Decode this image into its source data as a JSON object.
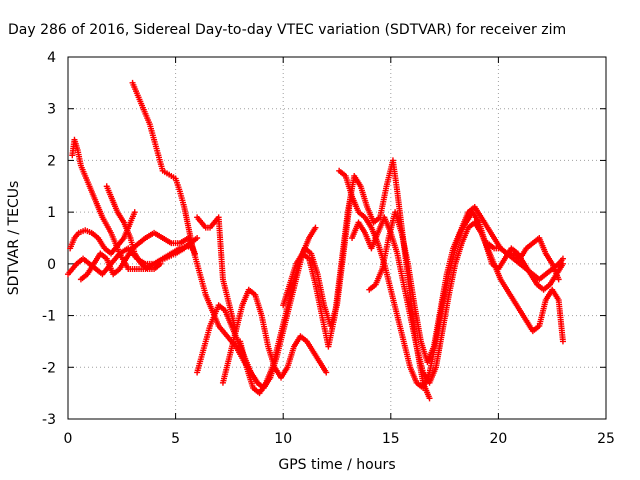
{
  "chart_data": {
    "type": "scatter",
    "title": "Day 286 of 2016, Sidereal Day-to-day VTEC variation (SDTVAR) for receiver zim",
    "xlabel": "GPS time / hours",
    "ylabel": "SDTVAR / TECUs",
    "xlim": [
      0,
      25
    ],
    "ylim": [
      -3,
      4
    ],
    "xticks": [
      "0",
      "5",
      "10",
      "15",
      "20",
      "25"
    ],
    "yticks": [
      "-3",
      "-2",
      "-1",
      "0",
      "1",
      "2",
      "3",
      "4"
    ],
    "grid": true,
    "marker": "plus",
    "color": "#ff0000",
    "series": [
      {
        "x": [
          0.0,
          0.2,
          0.4,
          0.7,
          1.0,
          1.3,
          1.6,
          2.0,
          2.4,
          2.8,
          3.2,
          3.6,
          4.0,
          4.4,
          4.8,
          5.2,
          5.5,
          5.8
        ],
        "y": [
          -0.2,
          -0.1,
          0.0,
          0.1,
          0.0,
          -0.1,
          -0.2,
          0.0,
          0.2,
          0.3,
          0.1,
          0.0,
          0.0,
          0.1,
          0.2,
          0.3,
          0.35,
          0.3
        ]
      },
      {
        "x": [
          0.1,
          0.3,
          0.5,
          0.8,
          1.1,
          1.4,
          1.7,
          2.0,
          2.3,
          2.6,
          2.9,
          3.1
        ],
        "y": [
          0.3,
          0.5,
          0.6,
          0.65,
          0.6,
          0.5,
          0.3,
          0.2,
          0.35,
          0.5,
          0.8,
          1.0
        ]
      },
      {
        "x": [
          0.2,
          0.3,
          0.45,
          0.6,
          0.8,
          1.0,
          1.3,
          1.6,
          2.0,
          2.4,
          2.8,
          3.2,
          3.6,
          4.0,
          4.5,
          5.0,
          5.4,
          5.7,
          6.0
        ],
        "y": [
          2.1,
          2.4,
          2.2,
          1.9,
          1.7,
          1.5,
          1.2,
          0.9,
          0.6,
          0.2,
          -0.1,
          -0.1,
          -0.1,
          0.0,
          0.1,
          0.2,
          0.3,
          0.4,
          0.5
        ]
      },
      {
        "x": [
          0.6,
          0.9,
          1.2,
          1.5,
          1.8,
          2.1,
          2.4,
          2.7,
          3.0,
          3.3,
          3.6,
          4.0,
          4.4,
          4.8,
          5.2,
          5.6,
          5.9
        ],
        "y": [
          -0.3,
          -0.2,
          0.0,
          0.2,
          0.1,
          -0.2,
          -0.1,
          0.1,
          0.3,
          0.4,
          0.5,
          0.6,
          0.5,
          0.4,
          0.4,
          0.5,
          0.2
        ]
      },
      {
        "x": [
          1.8,
          2.0,
          2.3,
          2.6,
          2.9,
          3.1,
          3.4,
          3.7,
          4.0,
          4.3
        ],
        "y": [
          1.5,
          1.3,
          1.0,
          0.8,
          0.5,
          0.2,
          0.0,
          -0.1,
          -0.1,
          0.0
        ]
      },
      {
        "x": [
          3.0,
          3.2,
          3.4,
          3.6,
          3.8,
          4.0,
          4.2,
          4.4,
          4.6,
          4.8,
          5.0,
          5.2,
          5.4,
          5.6,
          5.8,
          6.0,
          6.2,
          6.4,
          6.7,
          7.0,
          7.4,
          7.8,
          8.2,
          8.5,
          8.8
        ],
        "y": [
          3.5,
          3.3,
          3.1,
          2.9,
          2.7,
          2.4,
          2.1,
          1.8,
          1.75,
          1.7,
          1.65,
          1.4,
          1.1,
          0.7,
          0.3,
          0.0,
          -0.3,
          -0.6,
          -0.9,
          -1.2,
          -1.4,
          -1.6,
          -1.9,
          -2.1,
          -2.3
        ]
      },
      {
        "x": [
          6.0,
          6.2,
          6.4,
          6.6,
          6.8,
          7.0,
          7.2,
          7.5,
          7.8
        ],
        "y": [
          0.9,
          0.8,
          0.7,
          0.7,
          0.8,
          0.9,
          -0.3,
          -0.8,
          -1.3
        ]
      },
      {
        "x": [
          6.0,
          6.2,
          6.4,
          6.6,
          6.8,
          7.0,
          7.3,
          7.6,
          7.9,
          8.2,
          8.5,
          8.8,
          9.1,
          9.4,
          9.7,
          10.0,
          10.3,
          10.6,
          10.9,
          11.2,
          11.5
        ],
        "y": [
          -2.1,
          -1.8,
          -1.5,
          -1.2,
          -1.0,
          -0.8,
          -0.9,
          -1.2,
          -1.5,
          -1.8,
          -2.1,
          -2.3,
          -2.4,
          -2.2,
          -1.8,
          -1.3,
          -0.8,
          -0.3,
          0.2,
          0.5,
          0.7
        ]
      },
      {
        "x": [
          7.2,
          7.5,
          7.8,
          8.1,
          8.4,
          8.7,
          9.0,
          9.3,
          9.6,
          9.9,
          10.2,
          10.5,
          10.8,
          11.1,
          11.4,
          11.7,
          12.0
        ],
        "y": [
          -2.3,
          -1.8,
          -1.3,
          -0.8,
          -0.5,
          -0.6,
          -1.0,
          -1.6,
          -2.0,
          -2.2,
          -2.0,
          -1.6,
          -1.4,
          -1.5,
          -1.7,
          -1.9,
          -2.1
        ]
      },
      {
        "x": [
          8.0,
          8.3,
          8.6,
          8.9,
          9.2,
          9.5,
          9.8,
          10.1,
          10.4,
          10.7,
          11.0,
          11.3,
          11.6,
          11.9,
          12.2,
          12.5,
          12.8,
          13.1
        ],
        "y": [
          -1.5,
          -2.0,
          -2.4,
          -2.5,
          -2.3,
          -2.0,
          -1.5,
          -1.0,
          -0.5,
          0.0,
          0.3,
          0.2,
          -0.2,
          -0.8,
          -1.2,
          -0.8,
          0.2,
          1.2
        ]
      },
      {
        "x": [
          10.0,
          10.3,
          10.6,
          10.9,
          11.2,
          11.5,
          11.8,
          12.1,
          12.4,
          12.7,
          13.0,
          13.3,
          13.6,
          13.9,
          14.2,
          14.5,
          14.8,
          15.1,
          15.3,
          15.6,
          15.9,
          16.2,
          16.5,
          16.8
        ],
        "y": [
          -0.8,
          -0.4,
          0.0,
          0.2,
          0.1,
          -0.4,
          -1.0,
          -1.6,
          -1.0,
          0.0,
          1.0,
          1.7,
          1.5,
          1.1,
          0.8,
          0.9,
          1.5,
          2.0,
          1.4,
          0.4,
          -0.6,
          -1.6,
          -2.3,
          -2.6
        ]
      },
      {
        "x": [
          12.6,
          12.9,
          13.2,
          13.5,
          13.8,
          14.1,
          14.4,
          14.7,
          15.0,
          15.3,
          15.6,
          15.9,
          16.2,
          16.5,
          16.8,
          17.1,
          17.4,
          17.7,
          18.0,
          18.3,
          18.6,
          18.9,
          19.2,
          19.5,
          19.8,
          20.1,
          20.4,
          20.7,
          21.0,
          21.3,
          21.6,
          21.9,
          22.2,
          22.5,
          22.8,
          23.0
        ],
        "y": [
          1.8,
          1.7,
          1.3,
          1.0,
          0.9,
          0.7,
          0.4,
          0.0,
          -0.5,
          -1.0,
          -1.5,
          -2.0,
          -2.3,
          -2.4,
          -2.1,
          -1.5,
          -0.8,
          -0.2,
          0.3,
          0.7,
          1.0,
          1.1,
          0.9,
          0.7,
          0.5,
          0.3,
          0.2,
          0.1,
          0.0,
          -0.1,
          -0.2,
          -0.3,
          -0.2,
          -0.1,
          0.0,
          0.1
        ]
      },
      {
        "x": [
          13.2,
          13.5,
          13.8,
          14.1,
          14.4,
          14.7,
          15.0,
          15.3,
          15.6,
          15.9,
          16.2,
          16.5,
          16.8,
          17.1,
          17.4,
          17.7,
          18.0,
          18.3,
          18.6,
          18.9,
          19.2,
          19.5,
          19.8,
          20.1,
          20.4,
          20.7,
          21.0,
          21.3,
          21.6,
          21.9,
          22.2,
          22.5,
          22.8,
          23.0
        ],
        "y": [
          0.5,
          0.8,
          0.6,
          0.3,
          0.6,
          0.9,
          0.6,
          0.2,
          -0.4,
          -1.0,
          -1.6,
          -2.1,
          -2.3,
          -2.0,
          -1.3,
          -0.6,
          0.0,
          0.4,
          0.7,
          0.8,
          0.6,
          0.3,
          0.0,
          -0.3,
          -0.5,
          -0.7,
          -0.9,
          -1.1,
          -1.3,
          -1.2,
          -0.7,
          -0.5,
          -0.7,
          -1.5
        ]
      },
      {
        "x": [
          14.0,
          14.3,
          14.6,
          14.9,
          15.2,
          15.5,
          15.8,
          16.1,
          16.4,
          16.7,
          17.0,
          17.3,
          17.6,
          17.9,
          18.2,
          18.5,
          18.8,
          19.1,
          19.4,
          19.7,
          20.0,
          20.3,
          20.6,
          20.9,
          21.2,
          21.5,
          21.8,
          22.1,
          22.4,
          22.7,
          23.0
        ],
        "y": [
          -0.5,
          -0.4,
          -0.1,
          0.5,
          1.0,
          0.6,
          0.0,
          -0.8,
          -1.5,
          -1.9,
          -1.6,
          -0.9,
          -0.2,
          0.3,
          0.6,
          0.8,
          1.0,
          0.8,
          0.4,
          0.0,
          -0.1,
          0.1,
          0.3,
          0.2,
          0.0,
          -0.2,
          -0.4,
          -0.5,
          -0.4,
          -0.2,
          0.0
        ]
      },
      {
        "x": [
          19.5,
          19.8,
          20.1,
          20.4,
          20.7,
          21.0,
          21.3,
          21.6,
          21.9,
          22.2,
          22.5,
          22.8
        ],
        "y": [
          0.4,
          0.3,
          0.3,
          0.2,
          0.2,
          0.1,
          0.3,
          0.4,
          0.5,
          0.2,
          0.0,
          -0.3
        ]
      }
    ]
  }
}
